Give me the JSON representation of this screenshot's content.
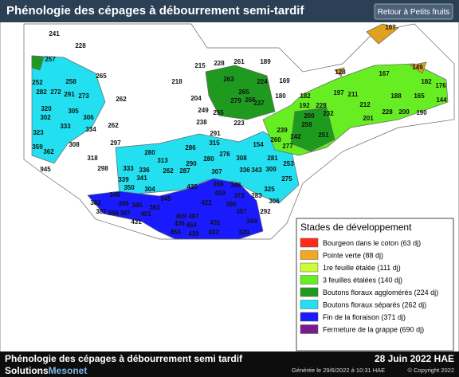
{
  "header": {
    "title": "Phénologie des cépages à débourrement semi-tardif",
    "button": "Retour à Petits fruits"
  },
  "legend": {
    "title": "Stades de développement",
    "items": [
      {
        "label": "Bourgeon dans le coton (63 dj)",
        "color": "#ff2a1a"
      },
      {
        "label": "Pointe verte (88 dj)",
        "color": "#f5a623"
      },
      {
        "label": "1re feuille étalée (111 dj)",
        "color": "#ccff33"
      },
      {
        "label": "3 feuilles étalées (140 dj)",
        "color": "#66ee22"
      },
      {
        "label": "Boutons floraux agglomérés (224 dj)",
        "color": "#1e9a1e"
      },
      {
        "label": "Boutons floraux séparés (262 dj)",
        "color": "#22e0f0"
      },
      {
        "label": "Fin de la floraison (371 dj)",
        "color": "#1a1aff"
      },
      {
        "label": "Fermeture de la grappe (690 dj)",
        "color": "#7a1a8c"
      }
    ]
  },
  "map": {
    "labels": [
      "241",
      "228",
      "257",
      "265",
      "252",
      "258",
      "282",
      "272",
      "291",
      "273",
      "320",
      "302",
      "262",
      "305",
      "306",
      "333",
      "334",
      "262",
      "323",
      "308",
      "297",
      "359",
      "362",
      "318",
      "298",
      "945",
      "215",
      "228",
      "261",
      "189",
      "218",
      "263",
      "224",
      "169",
      "265",
      "279",
      "266",
      "204",
      "249",
      "238",
      "255",
      "223",
      "237",
      "180",
      "182",
      "107",
      "149",
      "128",
      "167",
      "182",
      "176",
      "197",
      "211",
      "188",
      "165",
      "144",
      "192",
      "228",
      "212",
      "232",
      "200",
      "201",
      "228",
      "200",
      "190",
      "259",
      "239",
      "251",
      "260",
      "242",
      "277",
      "154",
      "281",
      "286",
      "291",
      "315",
      "276",
      "290",
      "280",
      "287",
      "307",
      "308",
      "336",
      "343",
      "309",
      "253",
      "275",
      "280",
      "313",
      "333",
      "336",
      "341",
      "262",
      "339",
      "350",
      "304",
      "349",
      "345",
      "356",
      "345",
      "362",
      "382",
      "387",
      "396",
      "387",
      "401",
      "431",
      "435",
      "356",
      "419",
      "346",
      "373",
      "283",
      "325",
      "306",
      "422",
      "395",
      "357",
      "292",
      "409",
      "487",
      "436",
      "454",
      "431",
      "344",
      "459",
      "439",
      "432",
      "320"
    ]
  },
  "footer": {
    "title": "Phénologie des cépages à débourrement semi tardif",
    "date": "28 Juin 2022 HAE",
    "brand1": "Solutions",
    "brand2": "Mesonet",
    "generated": "Générée le 29/6/2022 à 10:31 HAE",
    "copyright": "© Copyright 2022"
  }
}
